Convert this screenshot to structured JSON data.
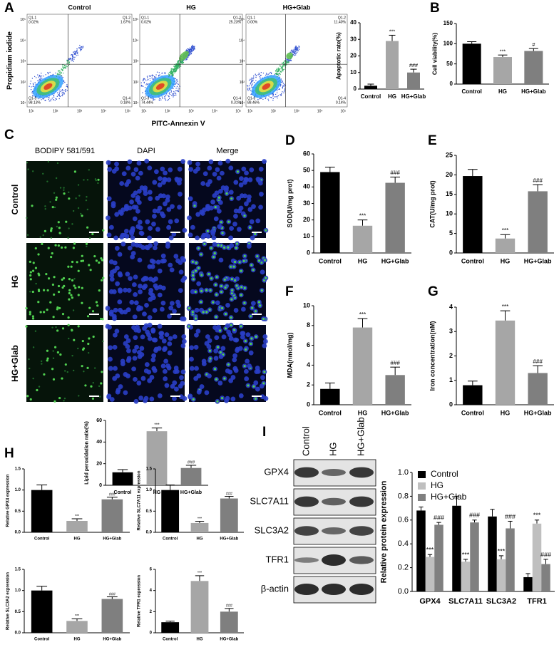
{
  "panels": [
    "A",
    "B",
    "C",
    "D",
    "E",
    "F",
    "G",
    "H",
    "I"
  ],
  "flow_cytometry": {
    "y_label": "Propidium iodide",
    "x_label": "PITC-Annexin V",
    "decade_labels": [
      "10¹",
      "10²",
      "10³",
      "10⁴",
      "10⁵"
    ],
    "plots": [
      {
        "title": "Control",
        "quadrants": [
          {
            "name": "Q1-1",
            "percent": "0.02%"
          },
          {
            "name": "Q1-2",
            "percent": "1.67%"
          },
          {
            "name": "Q1-3",
            "percent": "98.13%"
          },
          {
            "name": "Q1-4",
            "percent": "0.18%"
          }
        ]
      },
      {
        "title": "HG",
        "quadrants": [
          {
            "name": "Q1-1",
            "percent": "0.02%"
          },
          {
            "name": "Q1-2",
            "percent": "25.23%"
          },
          {
            "name": "Q1-3",
            "percent": "74.44%"
          },
          {
            "name": "Q1-4",
            "percent": "0.31%"
          }
        ]
      },
      {
        "title": "HG+Glab",
        "quadrants": [
          {
            "name": "Q1-1",
            "percent": "0.00%"
          },
          {
            "name": "Q1-2",
            "percent": "11.40%"
          },
          {
            "name": "Q1-3",
            "percent": "88.46%"
          },
          {
            "name": "Q1-4",
            "percent": "0.14%"
          }
        ]
      }
    ]
  },
  "microscopy": {
    "columns": [
      "BODIPY 581/591",
      "DAPI",
      "Merge"
    ],
    "rows": [
      "Control",
      "HG",
      "HG+Glab"
    ]
  },
  "western_blot": {
    "lanes": [
      "Control",
      "HG",
      "HG+Glab"
    ],
    "proteins": [
      "GPX4",
      "SLC7A11",
      "SLC3A2",
      "TFR1",
      "β-actin"
    ]
  },
  "chart_data": [
    {
      "type": "bar",
      "ylabel": "Apoptotic rate(%)",
      "categories": [
        "Control",
        "HG",
        "HG+Glab"
      ],
      "values": [
        2,
        29,
        10
      ],
      "errors": [
        1,
        3.5,
        2
      ],
      "annotations": [
        null,
        "***",
        "###"
      ],
      "colors": [
        "#000000",
        "#a6a6a6",
        "#7f7f7f"
      ],
      "ylim": [
        0,
        40
      ],
      "yticks": [
        0,
        10,
        20,
        30,
        40
      ]
    },
    {
      "type": "bar",
      "ylabel": "Cell viability(%)",
      "categories": [
        "Control",
        "HG",
        "HG+Glab"
      ],
      "values": [
        100,
        67,
        82
      ],
      "errors": [
        5,
        5,
        6
      ],
      "annotations": [
        null,
        "***",
        "#"
      ],
      "colors": [
        "#000000",
        "#a6a6a6",
        "#7f7f7f"
      ],
      "ylim": [
        0,
        150
      ],
      "yticks": [
        0,
        50,
        100,
        150
      ]
    },
    {
      "type": "bar",
      "ylabel": "Lipid peroxidation ratio(%)",
      "categories": [
        "Control",
        "HG",
        "HG+Glab"
      ],
      "values": [
        12,
        50,
        16
      ],
      "errors": [
        2.5,
        3,
        2.5
      ],
      "annotations": [
        null,
        "***",
        "###"
      ],
      "colors": [
        "#000000",
        "#a6a6a6",
        "#7f7f7f"
      ],
      "ylim": [
        0,
        60
      ],
      "yticks": [
        0,
        20,
        40,
        60
      ]
    },
    {
      "type": "bar",
      "ylabel": "SOD(U/mg prot)",
      "categories": [
        "Control",
        "HG",
        "HG+Glab"
      ],
      "values": [
        49,
        16.5,
        42.5
      ],
      "errors": [
        3,
        3.5,
        3.5
      ],
      "annotations": [
        null,
        "***",
        "###"
      ],
      "colors": [
        "#000000",
        "#a6a6a6",
        "#7f7f7f"
      ],
      "ylim": [
        0,
        60
      ],
      "yticks": [
        0,
        10,
        20,
        30,
        40,
        50,
        60
      ]
    },
    {
      "type": "bar",
      "ylabel": "CAT(U/mg prot)",
      "categories": [
        "Control",
        "HG",
        "HG+Glab"
      ],
      "values": [
        19.7,
        3.7,
        15.8
      ],
      "errors": [
        1.7,
        1,
        1.7
      ],
      "annotations": [
        null,
        "***",
        "###"
      ],
      "colors": [
        "#000000",
        "#a6a6a6",
        "#7f7f7f"
      ],
      "ylim": [
        0,
        25
      ],
      "yticks": [
        0,
        5,
        10,
        15,
        20,
        25
      ]
    },
    {
      "type": "bar",
      "ylabel": "MDA(nmol/mg)",
      "categories": [
        "Control",
        "HG",
        "HG+Glab"
      ],
      "values": [
        1.6,
        7.8,
        3.0
      ],
      "errors": [
        0.6,
        0.9,
        0.8
      ],
      "annotations": [
        null,
        "***",
        "###"
      ],
      "colors": [
        "#000000",
        "#a6a6a6",
        "#7f7f7f"
      ],
      "ylim": [
        0,
        10
      ],
      "yticks": [
        0,
        2,
        4,
        6,
        8,
        10
      ]
    },
    {
      "type": "bar",
      "ylabel": "Iron concentration(nM)",
      "categories": [
        "Control",
        "HG",
        "HG+Glab"
      ],
      "values": [
        0.8,
        3.45,
        1.3
      ],
      "errors": [
        0.17,
        0.4,
        0.3
      ],
      "annotations": [
        null,
        "***",
        "###"
      ],
      "colors": [
        "#000000",
        "#a6a6a6",
        "#7f7f7f"
      ],
      "ylim": [
        0,
        4
      ],
      "yticks": [
        0,
        1,
        2,
        3,
        4
      ]
    },
    {
      "type": "bar",
      "ylabel": "Relative GPX4 expression",
      "categories": [
        "Control",
        "HG",
        "HG+Glab"
      ],
      "values": [
        1.0,
        0.27,
        0.78
      ],
      "errors": [
        0.12,
        0.05,
        0.05
      ],
      "annotations": [
        null,
        "***",
        "###"
      ],
      "colors": [
        "#000000",
        "#a6a6a6",
        "#7f7f7f"
      ],
      "ylim": [
        0,
        1.5
      ],
      "yticks": [
        {
          "value": 0,
          "label": "0.0"
        },
        0.5,
        {
          "value": 1,
          "label": "1.0"
        },
        1.5
      ]
    },
    {
      "type": "bar",
      "ylabel": "Relative SLC7A11 expression",
      "categories": [
        "Control",
        "HG",
        "HG+Glab"
      ],
      "values": [
        1.0,
        0.22,
        0.8
      ],
      "errors": [
        0.12,
        0.04,
        0.05
      ],
      "annotations": [
        null,
        "***",
        "###"
      ],
      "colors": [
        "#000000",
        "#a6a6a6",
        "#7f7f7f"
      ],
      "ylim": [
        0,
        1.5
      ],
      "yticks": [
        {
          "value": 0,
          "label": "0.0"
        },
        0.5,
        {
          "value": 1,
          "label": "1.0"
        },
        1.5
      ]
    },
    {
      "type": "bar",
      "ylabel": "Relative SLC3A2 expression",
      "categories": [
        "Control",
        "HG",
        "HG+Glab"
      ],
      "values": [
        1.0,
        0.28,
        0.8
      ],
      "errors": [
        0.1,
        0.05,
        0.05
      ],
      "annotations": [
        null,
        "***",
        "###"
      ],
      "colors": [
        "#000000",
        "#a6a6a6",
        "#7f7f7f"
      ],
      "ylim": [
        0,
        1.5
      ],
      "yticks": [
        {
          "value": 0,
          "label": "0.0"
        },
        0.5,
        {
          "value": 1,
          "label": "1.0"
        },
        1.5
      ]
    },
    {
      "type": "bar",
      "ylabel": "Relative TFR1 expression",
      "categories": [
        "Control",
        "HG",
        "HG+Glab"
      ],
      "values": [
        1.0,
        4.9,
        2.0
      ],
      "errors": [
        0.1,
        0.5,
        0.3
      ],
      "annotations": [
        null,
        "***",
        "###"
      ],
      "colors": [
        "#000000",
        "#a6a6a6",
        "#7f7f7f"
      ],
      "ylim": [
        0,
        6
      ],
      "yticks": [
        0,
        2,
        4,
        6
      ]
    },
    {
      "type": "grouped_bar",
      "ylabel": "Relative protein expression",
      "categories": [
        "GPX4",
        "SLC7A11",
        "SLC3A2",
        "TFR1"
      ],
      "legend": "top-left",
      "series": [
        {
          "name": "Control",
          "color": "#000000",
          "values": [
            0.68,
            0.72,
            0.63,
            0.12
          ],
          "errors": [
            0.03,
            0.08,
            0.06,
            0.03
          ]
        },
        {
          "name": "HG",
          "color": "#bfbfbf",
          "values": [
            0.29,
            0.25,
            0.27,
            0.57
          ],
          "errors": [
            0.02,
            0.02,
            0.03,
            0.03
          ],
          "annotations": [
            "***",
            "***",
            "***",
            "***"
          ]
        },
        {
          "name": "HG+Glab",
          "color": "#808080",
          "values": [
            0.56,
            0.58,
            0.53,
            0.23
          ],
          "errors": [
            0.02,
            0.02,
            0.06,
            0.04
          ],
          "annotations": [
            "###",
            "###",
            "###",
            "###"
          ]
        }
      ],
      "ylim": [
        0,
        1.0
      ],
      "yticks": [
        {
          "value": 0,
          "label": "0.0"
        },
        0.2,
        0.4,
        0.6,
        0.8,
        {
          "value": 1,
          "label": "1.0"
        }
      ]
    }
  ]
}
